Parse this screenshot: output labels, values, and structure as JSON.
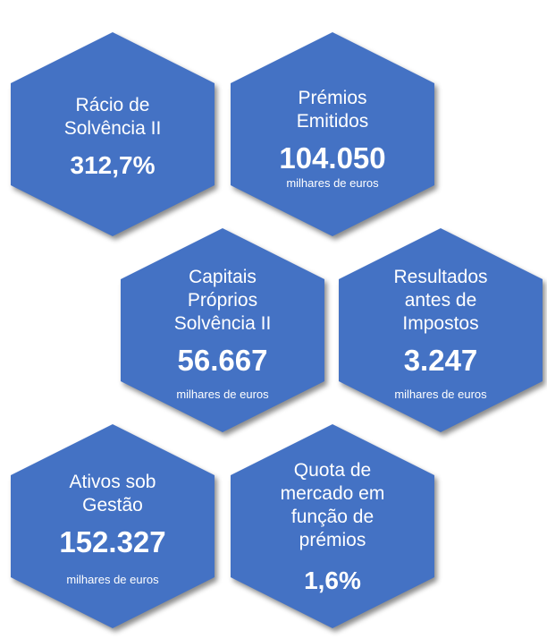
{
  "colors": {
    "hexagon_fill": "#4472C4",
    "text": "#FFFFFF"
  },
  "tiles": [
    {
      "label_lines": [
        "Rácio de",
        "Solvência II"
      ],
      "value": "312,7%",
      "unit": ""
    },
    {
      "label_lines": [
        "Prémios",
        "Emitidos"
      ],
      "value": "104.050",
      "unit": "milhares de euros"
    },
    {
      "label_lines": [
        "Capitais",
        "Próprios",
        "Solvência II"
      ],
      "value": "56.667",
      "unit": "milhares de euros"
    },
    {
      "label_lines": [
        "Resultados",
        "antes de",
        "Impostos"
      ],
      "value": "3.247",
      "unit": "milhares de euros"
    },
    {
      "label_lines": [
        "Ativos sob",
        "Gestão"
      ],
      "value": "152.327",
      "unit": "milhares de euros"
    },
    {
      "label_lines": [
        "Quota de",
        "mercado em",
        "função de",
        "prémios"
      ],
      "value": "1,6%",
      "unit": ""
    }
  ]
}
